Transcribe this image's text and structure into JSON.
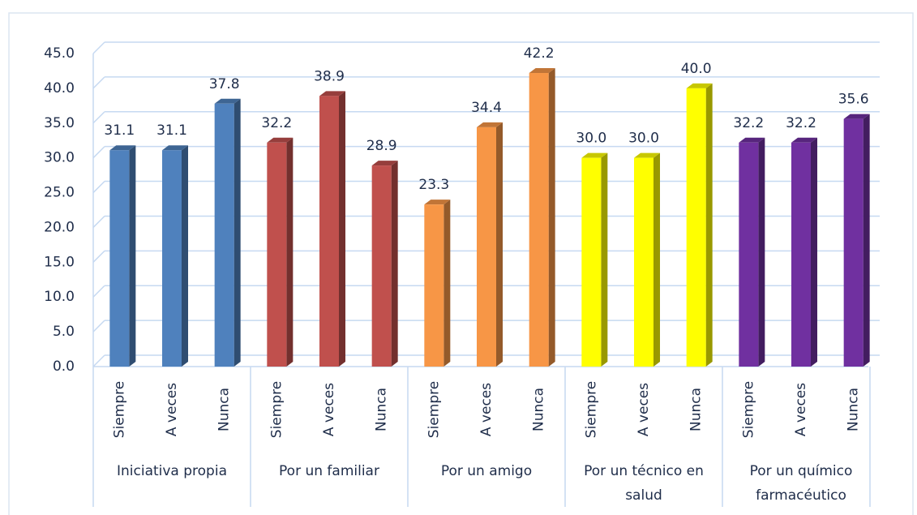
{
  "chart_data": {
    "type": "bar",
    "groups": [
      {
        "name": "Iniciativa propia",
        "color": "#4f81bd",
        "categories": [
          "Siempre",
          "A veces",
          "Nunca"
        ],
        "values": [
          31.1,
          31.1,
          37.8
        ],
        "value_labels": [
          "31.1",
          "31.1",
          "37.8"
        ]
      },
      {
        "name": "Por un familiar",
        "color": "#c0504d",
        "categories": [
          "Siempre",
          "A veces",
          "Nunca"
        ],
        "values": [
          32.2,
          38.9,
          28.9
        ],
        "value_labels": [
          "32.2",
          "38.9",
          "28.9"
        ]
      },
      {
        "name": "Por un amigo",
        "color": "#f79646",
        "categories": [
          "Siempre",
          "A veces",
          "Nunca"
        ],
        "values": [
          23.3,
          34.4,
          42.2
        ],
        "value_labels": [
          "23.3",
          "34.4",
          "42.2"
        ]
      },
      {
        "name": "Por un técnico en salud",
        "color": "#ffff00",
        "categories": [
          "Siempre",
          "A veces",
          "Nunca"
        ],
        "values": [
          30.0,
          30.0,
          40.0
        ],
        "value_labels": [
          "30.0",
          "30.0",
          "40.0"
        ]
      },
      {
        "name": "Por un químico farmacéutico",
        "color": "#7030a0",
        "categories": [
          "Siempre",
          "A veces",
          "Nunca"
        ],
        "values": [
          32.2,
          32.2,
          35.6
        ],
        "value_labels": [
          "32.2",
          "32.2",
          "35.6"
        ]
      }
    ],
    "ylim": [
      0,
      45
    ],
    "yticks": [
      {
        "value": 0,
        "label": "0.0"
      },
      {
        "value": 5,
        "label": "5.0"
      },
      {
        "value": 10,
        "label": "10.0"
      },
      {
        "value": 15,
        "label": "15.0"
      },
      {
        "value": 20,
        "label": "20.0"
      },
      {
        "value": 25,
        "label": "25.0"
      },
      {
        "value": 30,
        "label": "30.0"
      },
      {
        "value": 35,
        "label": "35.0"
      },
      {
        "value": 40,
        "label": "40.0"
      },
      {
        "value": 45,
        "label": "45.0"
      }
    ],
    "grid": true
  }
}
